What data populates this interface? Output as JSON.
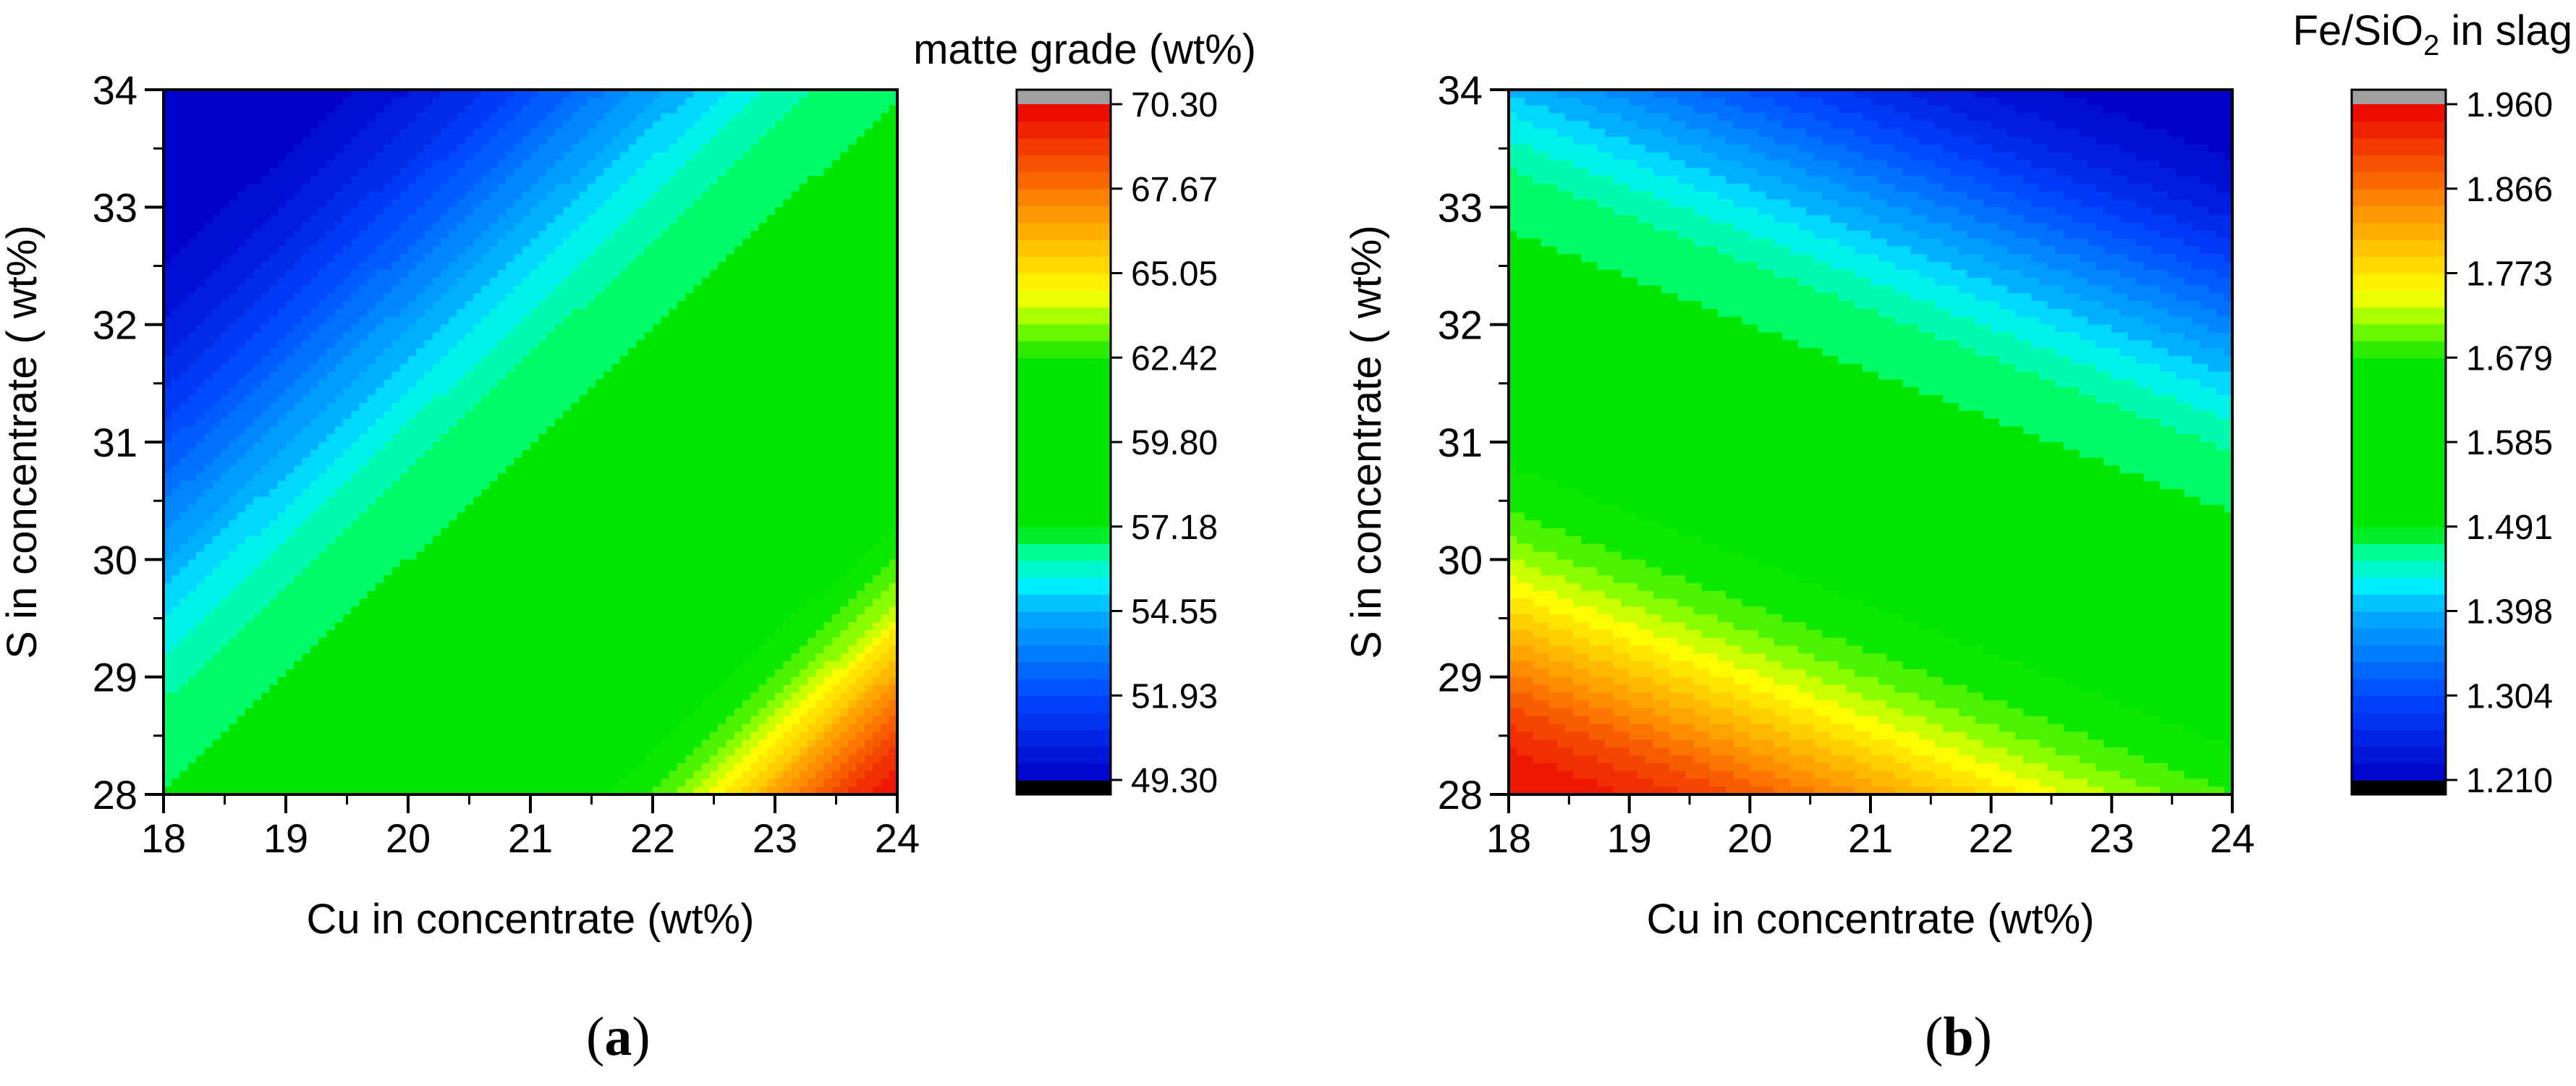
{
  "chart_data": [
    {
      "type": "heatmap",
      "panel_label": "a",
      "xlabel": "Cu in concentrate (wt%)",
      "ylabel": "S in  concentrate ( wt%)",
      "xlim": [
        18,
        24
      ],
      "ylim": [
        28,
        34
      ],
      "xticks": [
        "18",
        "19",
        "20",
        "21",
        "22",
        "23",
        "24"
      ],
      "yticks": [
        "28",
        "29",
        "30",
        "31",
        "32",
        "33",
        "34"
      ],
      "colorbar": {
        "title": "matte grade (wt%)",
        "min": 49.3,
        "max": 70.3,
        "ticks": [
          "49.30",
          "51.93",
          "54.55",
          "57.18",
          "59.80",
          "62.42",
          "65.05",
          "67.67",
          "70.30"
        ],
        "levels": 40,
        "over_color": "#a0a0a0",
        "under_color": "#000000"
      },
      "field": {
        "description": "matte grade increases with Cu and decreases with S; plateau ~60 in the central band",
        "corner_values": {
          "x18_y28": 59.8,
          "x18_y34": 49.5,
          "x24_y28": 70.0,
          "x24_y34": 60.0
        }
      }
    },
    {
      "type": "heatmap",
      "panel_label": "b",
      "xlabel": "Cu in concentrate (wt%)",
      "ylabel": "S in  concentrate ( wt%)",
      "xlim": [
        18,
        24
      ],
      "ylim": [
        28,
        34
      ],
      "xticks": [
        "18",
        "19",
        "20",
        "21",
        "22",
        "23",
        "24"
      ],
      "yticks": [
        "28",
        "29",
        "30",
        "31",
        "32",
        "33",
        "34"
      ],
      "colorbar": {
        "title_main": "Fe/SiO",
        "title_sub": "2",
        "title_tail": " in slag",
        "min": 1.21,
        "max": 1.96,
        "ticks": [
          "1.210",
          "1.304",
          "1.398",
          "1.491",
          "1.585",
          "1.679",
          "1.773",
          "1.866",
          "1.960"
        ],
        "levels": 40,
        "over_color": "#a0a0a0",
        "under_color": "#000000"
      },
      "field": {
        "description": "Fe/SiO2 decreases with both Cu and S; plateau ~1.63 in the central band",
        "corner_values": {
          "x18_y28": 1.955,
          "x18_y34": 1.43,
          "x24_y28": 1.61,
          "x24_y34": 1.21
        }
      }
    }
  ]
}
